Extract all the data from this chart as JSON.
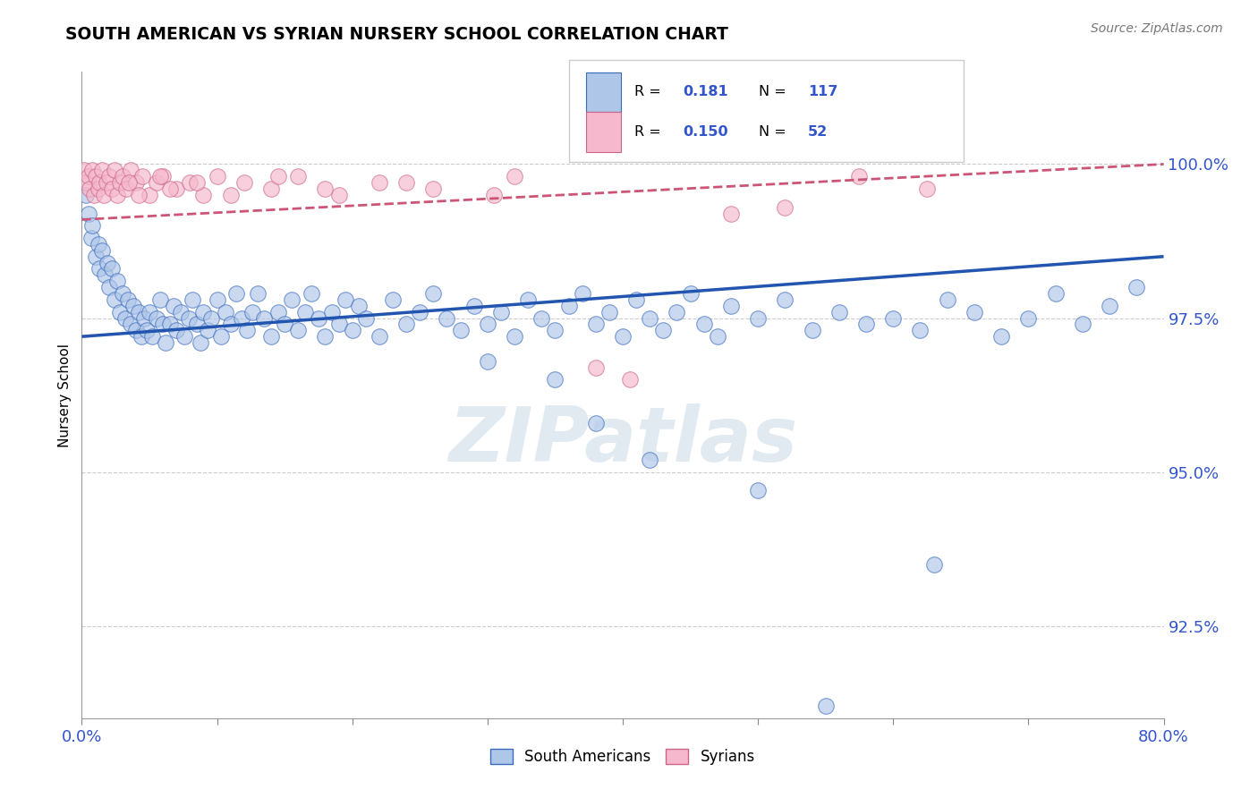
{
  "title": "SOUTH AMERICAN VS SYRIAN NURSERY SCHOOL CORRELATION CHART",
  "source": "Source: ZipAtlas.com",
  "ylabel": "Nursery School",
  "legend_blue_label": "South Americans",
  "legend_pink_label": "Syrians",
  "R_blue": "0.181",
  "N_blue": "117",
  "R_pink": "0.150",
  "N_pink": "52",
  "blue_face": "#aec6e8",
  "blue_edge": "#3a6bbf",
  "pink_face": "#f5b8cc",
  "pink_edge": "#cc6688",
  "blue_line": "#2255b0",
  "pink_line": "#cc5577",
  "label_color": "#3355cc",
  "grid_color": "#cccccc",
  "watermark": "ZIPatlas",
  "xmin": 0.0,
  "xmax": 80.0,
  "ymin": 91.0,
  "ymax": 101.5,
  "ytick_values": [
    100.0,
    97.5,
    95.0,
    92.5
  ],
  "ytick_labels": [
    "100.0%",
    "97.5%",
    "95.0%",
    "92.5%"
  ],
  "blue_trend_y0": 97.2,
  "blue_trend_y1": 98.5,
  "pink_trend_y0": 99.1,
  "pink_trend_y1": 100.0,
  "blue_x": [
    0.3,
    0.5,
    0.7,
    0.8,
    1.0,
    1.2,
    1.3,
    1.5,
    1.7,
    1.9,
    2.0,
    2.2,
    2.4,
    2.6,
    2.8,
    3.0,
    3.2,
    3.4,
    3.6,
    3.8,
    4.0,
    4.2,
    4.4,
    4.6,
    4.8,
    5.0,
    5.2,
    5.5,
    5.8,
    6.0,
    6.2,
    6.5,
    6.8,
    7.0,
    7.3,
    7.6,
    7.9,
    8.2,
    8.5,
    8.8,
    9.0,
    9.3,
    9.6,
    10.0,
    10.3,
    10.6,
    11.0,
    11.4,
    11.8,
    12.2,
    12.6,
    13.0,
    13.5,
    14.0,
    14.5,
    15.0,
    15.5,
    16.0,
    16.5,
    17.0,
    17.5,
    18.0,
    18.5,
    19.0,
    19.5,
    20.0,
    20.5,
    21.0,
    22.0,
    23.0,
    24.0,
    25.0,
    26.0,
    27.0,
    28.0,
    29.0,
    30.0,
    31.0,
    32.0,
    33.0,
    34.0,
    35.0,
    36.0,
    37.0,
    38.0,
    39.0,
    40.0,
    41.0,
    42.0,
    43.0,
    44.0,
    45.0,
    46.0,
    47.0,
    48.0,
    50.0,
    52.0,
    54.0,
    56.0,
    58.0,
    60.0,
    62.0,
    64.0,
    66.0,
    68.0,
    70.0,
    72.0,
    74.0,
    76.0,
    78.0,
    30.0,
    35.0,
    38.0,
    42.0,
    50.0,
    55.0,
    63.0
  ],
  "blue_y": [
    99.5,
    99.2,
    98.8,
    99.0,
    98.5,
    98.7,
    98.3,
    98.6,
    98.2,
    98.4,
    98.0,
    98.3,
    97.8,
    98.1,
    97.6,
    97.9,
    97.5,
    97.8,
    97.4,
    97.7,
    97.3,
    97.6,
    97.2,
    97.5,
    97.3,
    97.6,
    97.2,
    97.5,
    97.8,
    97.4,
    97.1,
    97.4,
    97.7,
    97.3,
    97.6,
    97.2,
    97.5,
    97.8,
    97.4,
    97.1,
    97.6,
    97.3,
    97.5,
    97.8,
    97.2,
    97.6,
    97.4,
    97.9,
    97.5,
    97.3,
    97.6,
    97.9,
    97.5,
    97.2,
    97.6,
    97.4,
    97.8,
    97.3,
    97.6,
    97.9,
    97.5,
    97.2,
    97.6,
    97.4,
    97.8,
    97.3,
    97.7,
    97.5,
    97.2,
    97.8,
    97.4,
    97.6,
    97.9,
    97.5,
    97.3,
    97.7,
    97.4,
    97.6,
    97.2,
    97.8,
    97.5,
    97.3,
    97.7,
    97.9,
    97.4,
    97.6,
    97.2,
    97.8,
    97.5,
    97.3,
    97.6,
    97.9,
    97.4,
    97.2,
    97.7,
    97.5,
    97.8,
    97.3,
    97.6,
    97.4,
    97.5,
    97.3,
    97.8,
    97.6,
    97.2,
    97.5,
    97.9,
    97.4,
    97.7,
    98.0,
    96.8,
    96.5,
    95.8,
    95.2,
    94.7,
    91.2,
    93.5
  ],
  "pink_x": [
    0.2,
    0.3,
    0.5,
    0.6,
    0.8,
    0.9,
    1.0,
    1.2,
    1.3,
    1.5,
    1.6,
    1.8,
    2.0,
    2.2,
    2.4,
    2.6,
    2.8,
    3.0,
    3.3,
    3.6,
    4.0,
    4.5,
    5.0,
    5.5,
    6.0,
    7.0,
    8.0,
    9.0,
    10.0,
    12.0,
    14.0,
    16.0,
    19.0,
    22.0,
    26.0,
    32.0,
    40.5,
    48.0,
    57.5,
    62.5,
    3.5,
    4.2,
    5.8,
    6.5,
    8.5,
    11.0,
    14.5,
    18.0,
    24.0,
    30.5,
    38.0,
    52.0
  ],
  "pink_y": [
    99.9,
    99.7,
    99.8,
    99.6,
    99.9,
    99.5,
    99.8,
    99.6,
    99.7,
    99.9,
    99.5,
    99.7,
    99.8,
    99.6,
    99.9,
    99.5,
    99.7,
    99.8,
    99.6,
    99.9,
    99.7,
    99.8,
    99.5,
    99.7,
    99.8,
    99.6,
    99.7,
    99.5,
    99.8,
    99.7,
    99.6,
    99.8,
    99.5,
    99.7,
    99.6,
    99.8,
    96.5,
    99.2,
    99.8,
    99.6,
    99.7,
    99.5,
    99.8,
    99.6,
    99.7,
    99.5,
    99.8,
    99.6,
    99.7,
    99.5,
    96.7,
    99.3
  ]
}
